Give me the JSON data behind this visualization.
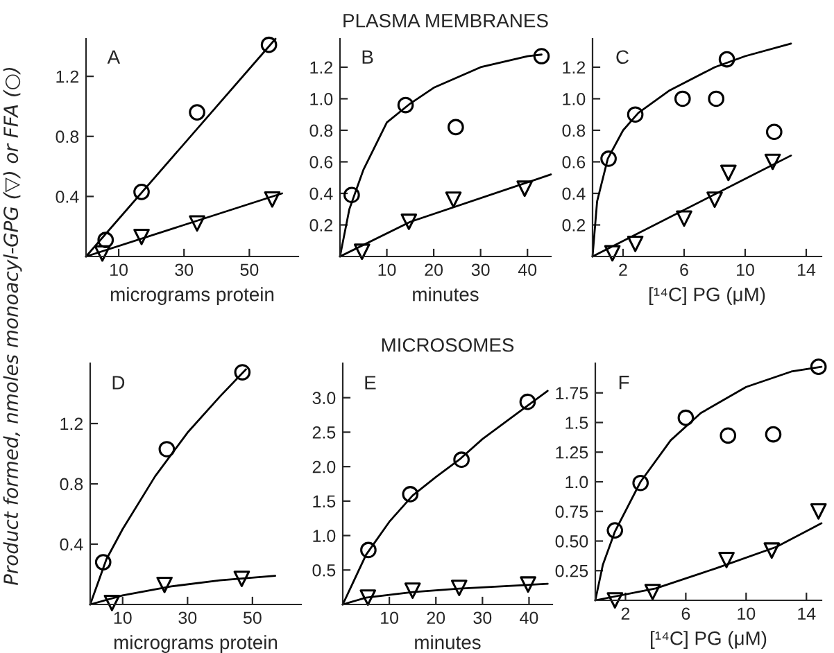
{
  "chart_data": [
    {
      "type": "scatter",
      "ylabel": "Product formed, nmoles monoacyl-GPG (▽) or FFA (○)",
      "xlabel": "micrograms protein",
      "annotations": [
        "A"
      ],
      "xlim": [
        0,
        65
      ],
      "ylim": [
        0,
        1.45
      ],
      "xticks": [
        10,
        30,
        50
      ],
      "yticks": [
        0.4,
        0.8,
        1.2
      ],
      "grid": false,
      "legend": false,
      "series": [
        {
          "type": "scatter",
          "marker": "circle",
          "color": "#000000",
          "x": [
            6,
            17,
            34,
            56
          ],
          "values": [
            0.11,
            0.43,
            0.96,
            1.41
          ]
        },
        {
          "type": "scatter",
          "marker": "triangle",
          "color": "#000000",
          "x": [
            5,
            17,
            34,
            57
          ],
          "values": [
            0.02,
            0.13,
            0.22,
            0.38
          ]
        },
        {
          "type": "line",
          "color": "#000000",
          "x": [
            0,
            58
          ],
          "values": [
            0,
            1.45
          ]
        },
        {
          "type": "line",
          "color": "#000000",
          "x": [
            0,
            60
          ],
          "values": [
            0,
            0.42
          ]
        }
      ]
    },
    {
      "type": "scatter",
      "title": "PLASMA MEMBRANES",
      "xlabel": "minutes",
      "annotations": [
        "B"
      ],
      "xlim": [
        0,
        45
      ],
      "ylim": [
        0,
        1.38
      ],
      "xticks": [
        10,
        20,
        30,
        40
      ],
      "yticks": [
        0.2,
        0.4,
        0.6,
        0.8,
        {
          "value": 1,
          "label": "1.0"
        },
        1.2
      ],
      "grid": false,
      "legend": false,
      "series": [
        {
          "type": "scatter",
          "marker": "circle",
          "color": "#000000",
          "x": [
            2.5,
            14,
            24.7,
            43
          ],
          "values": [
            0.39,
            0.96,
            0.82,
            1.27
          ]
        },
        {
          "type": "scatter",
          "marker": "triangle",
          "color": "#000000",
          "x": [
            4.7,
            14.7,
            24.2,
            39.4
          ],
          "values": [
            0.03,
            0.22,
            0.36,
            0.43
          ]
        },
        {
          "type": "line",
          "color": "#000000",
          "x": [
            0,
            2,
            5,
            10,
            15,
            20,
            30,
            40,
            43
          ],
          "values": [
            0,
            0.3,
            0.55,
            0.85,
            0.97,
            1.07,
            1.2,
            1.27,
            1.28
          ]
        },
        {
          "type": "line",
          "color": "#000000",
          "x": [
            0,
            15,
            45
          ],
          "values": [
            0,
            0.22,
            0.52
          ]
        }
      ]
    },
    {
      "type": "scatter",
      "xlabel": "[¹⁴C] PG (μM)",
      "annotations": [
        "C"
      ],
      "xlim": [
        0,
        15
      ],
      "ylim": [
        0,
        1.38
      ],
      "xticks": [
        2,
        6,
        10,
        14
      ],
      "yticks": [
        0.2,
        0.4,
        0.6,
        0.8,
        {
          "value": 1,
          "label": "1.0"
        },
        1.2
      ],
      "grid": false,
      "legend": false,
      "series": [
        {
          "type": "scatter",
          "marker": "circle",
          "color": "#000000",
          "x": [
            1.05,
            2.8,
            5.9,
            8.1,
            8.8,
            11.9
          ],
          "values": [
            0.62,
            0.9,
            1.0,
            1.0,
            1.25,
            0.79
          ]
        },
        {
          "type": "scatter",
          "marker": "triangle",
          "color": "#000000",
          "x": [
            1.3,
            2.8,
            6.0,
            8.0,
            8.9,
            11.8
          ],
          "values": [
            0.02,
            0.08,
            0.24,
            0.36,
            0.53,
            0.6
          ]
        },
        {
          "type": "line",
          "color": "#000000",
          "x": [
            0,
            0.3,
            1,
            2,
            3,
            5,
            8,
            10,
            13
          ],
          "values": [
            0,
            0.35,
            0.62,
            0.8,
            0.91,
            1.05,
            1.2,
            1.27,
            1.35
          ]
        },
        {
          "type": "line",
          "color": "#000000",
          "x": [
            0,
            13
          ],
          "values": [
            0,
            0.64
          ]
        }
      ]
    },
    {
      "type": "scatter",
      "xlabel": "micrograms protein",
      "annotations": [
        "D"
      ],
      "xlim": [
        0,
        65
      ],
      "ylim": [
        0,
        1.6
      ],
      "xticks": [
        10,
        30,
        50
      ],
      "yticks": [
        0.4,
        0.8,
        1.2
      ],
      "grid": false,
      "legend": false,
      "series": [
        {
          "type": "scatter",
          "marker": "circle",
          "color": "#000000",
          "x": [
            4,
            23.6,
            46.9
          ],
          "values": [
            0.28,
            1.03,
            1.54
          ]
        },
        {
          "type": "scatter",
          "marker": "triangle",
          "color": "#000000",
          "x": [
            6.7,
            22.9,
            46.7
          ],
          "values": [
            0.01,
            0.13,
            0.17
          ]
        },
        {
          "type": "line",
          "color": "#000000",
          "x": [
            0,
            5,
            10,
            20,
            30,
            40,
            48
          ],
          "values": [
            0,
            0.3,
            0.5,
            0.85,
            1.14,
            1.38,
            1.56
          ]
        },
        {
          "type": "line",
          "color": "#000000",
          "x": [
            0,
            10,
            25,
            40,
            57
          ],
          "values": [
            0,
            0.06,
            0.12,
            0.16,
            0.19
          ]
        }
      ]
    },
    {
      "type": "scatter",
      "title": "MICROSOMES",
      "xlabel": "minutes",
      "annotations": [
        "E"
      ],
      "xlim": [
        0,
        45
      ],
      "ylim": [
        0,
        3.5
      ],
      "xticks": [
        10,
        20,
        30,
        40
      ],
      "yticks": [
        0.5,
        {
          "value": 1,
          "label": "1.0"
        },
        1.5,
        {
          "value": 2,
          "label": "2.0"
        },
        2.5,
        {
          "value": 3,
          "label": "3.0"
        }
      ],
      "grid": false,
      "legend": false,
      "series": [
        {
          "type": "scatter",
          "marker": "circle",
          "color": "#000000",
          "x": [
            5.5,
            14.5,
            25.5,
            39.7
          ],
          "values": [
            0.79,
            1.6,
            2.1,
            2.94
          ]
        },
        {
          "type": "scatter",
          "marker": "triangle",
          "color": "#000000",
          "x": [
            5.4,
            15,
            25,
            39.8
          ],
          "values": [
            0.1,
            0.2,
            0.24,
            0.29
          ]
        },
        {
          "type": "line",
          "color": "#000000",
          "x": [
            0,
            5,
            10,
            15,
            20,
            25,
            30,
            40,
            44
          ],
          "values": [
            0,
            0.72,
            1.2,
            1.58,
            1.85,
            2.1,
            2.4,
            2.9,
            3.1
          ]
        },
        {
          "type": "line",
          "color": "#000000",
          "x": [
            0,
            5,
            15,
            25,
            44
          ],
          "values": [
            0,
            0.1,
            0.18,
            0.23,
            0.3
          ]
        }
      ]
    },
    {
      "type": "scatter",
      "xlabel": "[¹⁴C] PG (μM)",
      "annotations": [
        "F"
      ],
      "xlim": [
        0,
        15
      ],
      "ylim": [
        0,
        2.0
      ],
      "xticks": [
        2,
        6,
        10,
        14
      ],
      "yticks": [
        0.25,
        {
          "value": 0.5,
          "label": "0.50"
        },
        {
          "value": 0.75,
          "label": "0.75"
        },
        {
          "value": 1,
          "label": "1.0"
        },
        1.25,
        1.5,
        1.75
      ],
      "grid": false,
      "legend": false,
      "series": [
        {
          "type": "scatter",
          "marker": "circle",
          "color": "#000000",
          "x": [
            1.3,
            3.0,
            6.0,
            8.8,
            11.8,
            14.8
          ],
          "values": [
            0.59,
            0.99,
            1.54,
            1.39,
            1.4,
            1.97
          ]
        },
        {
          "type": "scatter",
          "marker": "triangle",
          "color": "#000000",
          "x": [
            1.3,
            3.8,
            8.7,
            11.7,
            14.8
          ],
          "values": [
            0.0,
            0.07,
            0.34,
            0.42,
            0.75
          ]
        },
        {
          "type": "line",
          "color": "#000000",
          "x": [
            0,
            0.5,
            1.3,
            3,
            5,
            7,
            10,
            13,
            15
          ],
          "values": [
            0,
            0.3,
            0.58,
            1.0,
            1.35,
            1.58,
            1.8,
            1.93,
            1.97
          ]
        },
        {
          "type": "line",
          "color": "#000000",
          "x": [
            0,
            4,
            8,
            12,
            15
          ],
          "values": [
            0,
            0.1,
            0.27,
            0.45,
            0.65
          ]
        }
      ]
    }
  ]
}
